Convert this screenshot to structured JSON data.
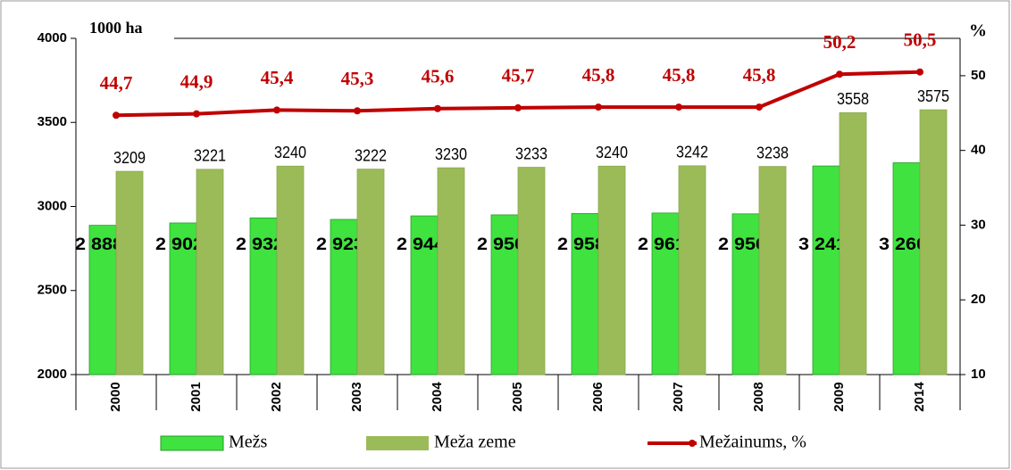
{
  "chart_data": {
    "type": "bar",
    "categories": [
      "2000",
      "2001",
      "2002",
      "2003",
      "2004",
      "2005",
      "2006",
      "2007",
      "2008",
      "2009",
      "2014"
    ],
    "y_label": "1000 ha",
    "y2_label": "%",
    "ylim": [
      2000,
      4000
    ],
    "yticks": [
      2000,
      2500,
      3000,
      3500,
      4000
    ],
    "y2lim": [
      10,
      55
    ],
    "y2ticks": [
      10,
      20,
      30,
      40,
      50
    ],
    "series": [
      {
        "name": "Mežs",
        "type": "bar",
        "color": "#3fe23f",
        "values": [
          2888,
          2902,
          2932,
          2923,
          2944,
          2950,
          2958,
          2961,
          2956,
          3241,
          3260
        ],
        "value_labels": [
          "2 888",
          "2 902",
          "2 932",
          "2 923",
          "2 944",
          "2 950",
          "2 958",
          "2 961",
          "2 956",
          "3 241",
          "3 260"
        ]
      },
      {
        "name": "Meža zeme",
        "type": "bar",
        "color": "#9bbb59",
        "values": [
          3209,
          3221,
          3240,
          3222,
          3230,
          3233,
          3240,
          3242,
          3238,
          3558,
          3575
        ]
      },
      {
        "name": "Mežainums, %",
        "type": "line",
        "axis": "y2",
        "color": "#c00000",
        "values": [
          44.7,
          44.9,
          45.4,
          45.3,
          45.6,
          45.7,
          45.8,
          45.8,
          45.8,
          50.2,
          50.5
        ],
        "value_labels": [
          "44,7",
          "44,9",
          "45,4",
          "45,3",
          "45,6",
          "45,7",
          "45,8",
          "45,8",
          "45,8",
          "50,2",
          "50,5"
        ]
      }
    ]
  }
}
